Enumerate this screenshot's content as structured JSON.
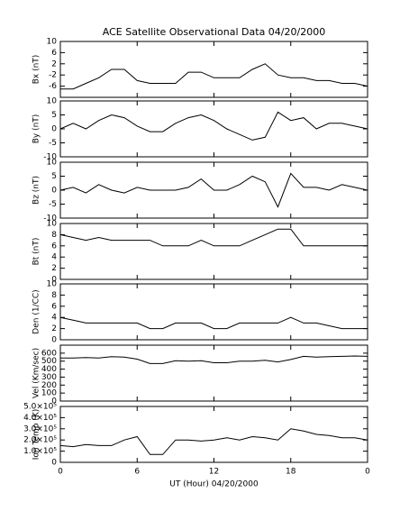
{
  "chart_data": [
    {
      "type": "line",
      "title": "ACE Satellite Observational Data  04/20/2000",
      "ylabel": "Bx (nT)",
      "x": [
        0,
        1,
        2,
        3,
        4,
        5,
        6,
        7,
        8,
        9,
        10,
        11,
        12,
        13,
        14,
        15,
        16,
        17,
        18,
        19,
        20,
        21,
        22,
        23,
        24
      ],
      "values": [
        -7,
        -7,
        -5,
        -3,
        0,
        0,
        -4,
        -5,
        -5,
        -5,
        -1,
        -1,
        -3,
        -3,
        -3,
        0,
        2,
        -2,
        -3,
        -3,
        -4,
        -4,
        -5,
        -5,
        -6
      ],
      "color": "#000000",
      "xlim": [
        0,
        24
      ],
      "xticks": [
        0,
        6,
        12,
        18,
        24
      ],
      "ylim": [
        -10,
        10
      ],
      "yticks": [
        10,
        6,
        2,
        -2,
        -6
      ]
    },
    {
      "type": "line",
      "ylabel": "By (nT)",
      "x": [
        0,
        1,
        2,
        3,
        4,
        5,
        6,
        7,
        8,
        9,
        10,
        11,
        12,
        13,
        14,
        15,
        16,
        17,
        18,
        19,
        20,
        21,
        22,
        23,
        24
      ],
      "values": [
        0,
        2,
        0,
        3,
        5,
        4,
        1,
        -1,
        -1,
        2,
        4,
        5,
        3,
        0,
        -2,
        -4,
        -3,
        6,
        3,
        4,
        0,
        2,
        2,
        1,
        0
      ],
      "color": "#000000",
      "xlim": [
        0,
        24
      ],
      "xticks": [
        0,
        6,
        12,
        18,
        24
      ],
      "ylim": [
        -10,
        10
      ],
      "yticks": [
        10,
        5,
        0,
        -5,
        -10
      ]
    },
    {
      "type": "line",
      "ylabel": "Bz (nT)",
      "x": [
        0,
        1,
        2,
        3,
        4,
        5,
        6,
        7,
        8,
        9,
        10,
        11,
        12,
        13,
        14,
        15,
        16,
        17,
        18,
        19,
        20,
        21,
        22,
        23,
        24
      ],
      "values": [
        0,
        1,
        -1,
        2,
        0,
        -1,
        1,
        0,
        0,
        0,
        1,
        4,
        0,
        0,
        2,
        5,
        3,
        -6,
        6,
        1,
        1,
        0,
        2,
        1,
        0
      ],
      "color": "#000000",
      "xlim": [
        0,
        24
      ],
      "xticks": [
        0,
        6,
        12,
        18,
        24
      ],
      "ylim": [
        -10,
        10
      ],
      "yticks": [
        10,
        5,
        0,
        -5,
        -10
      ]
    },
    {
      "type": "line",
      "ylabel": "Bt (nT)",
      "x": [
        0,
        1,
        2,
        3,
        4,
        5,
        6,
        7,
        8,
        9,
        10,
        11,
        12,
        13,
        14,
        15,
        16,
        17,
        18,
        19,
        20,
        21,
        22,
        23,
        24
      ],
      "values": [
        8,
        7.5,
        7,
        7.5,
        7,
        7,
        7,
        7,
        6,
        6,
        6,
        7,
        6,
        6,
        6,
        7,
        8,
        9,
        9,
        6,
        6,
        6,
        6,
        6,
        6
      ],
      "color": "#000000",
      "xlim": [
        0,
        24
      ],
      "xticks": [
        0,
        6,
        12,
        18,
        24
      ],
      "ylim": [
        0,
        10
      ],
      "yticks": [
        10,
        8,
        6,
        4,
        2,
        0
      ]
    },
    {
      "type": "line",
      "ylabel": "Den (1/CC)",
      "x": [
        0,
        1,
        2,
        3,
        4,
        5,
        6,
        7,
        8,
        9,
        10,
        11,
        12,
        13,
        14,
        15,
        16,
        17,
        18,
        19,
        20,
        21,
        22,
        23,
        24
      ],
      "values": [
        4,
        3.5,
        3,
        3,
        3,
        3,
        3,
        2,
        2,
        3,
        3,
        3,
        2,
        2,
        3,
        3,
        3,
        3,
        4,
        3,
        3,
        2.5,
        2,
        2,
        2
      ],
      "color": "#000000",
      "xlim": [
        0,
        24
      ],
      "xticks": [
        0,
        6,
        12,
        18,
        24
      ],
      "ylim": [
        0,
        10
      ],
      "yticks": [
        10,
        8,
        6,
        4,
        2,
        0
      ]
    },
    {
      "type": "line",
      "ylabel": "Vel (Km/sec)",
      "x": [
        0,
        1,
        2,
        3,
        4,
        5,
        6,
        7,
        8,
        9,
        10,
        11,
        12,
        13,
        14,
        15,
        16,
        17,
        18,
        19,
        20,
        21,
        22,
        23,
        24
      ],
      "values": [
        540,
        540,
        545,
        540,
        555,
        550,
        525,
        470,
        470,
        505,
        500,
        505,
        480,
        480,
        500,
        500,
        510,
        490,
        520,
        560,
        550,
        555,
        560,
        565,
        560
      ],
      "color": "#000000",
      "xlim": [
        0,
        24
      ],
      "xticks": [
        0,
        6,
        12,
        18,
        24
      ],
      "ylim": [
        0,
        700
      ],
      "yticks": [
        600,
        500,
        400,
        300,
        200,
        100,
        0
      ]
    },
    {
      "type": "line",
      "ylabel": "Ion Temp (K)",
      "xlabel": "UT (Hour)  04/20/2000",
      "x": [
        0,
        1,
        2,
        3,
        4,
        5,
        6,
        7,
        8,
        9,
        10,
        11,
        12,
        13,
        14,
        15,
        16,
        17,
        18,
        19,
        20,
        21,
        22,
        23,
        24
      ],
      "values": [
        150000,
        140000,
        160000,
        150000,
        150000,
        200000,
        230000,
        70000,
        70000,
        200000,
        200000,
        190000,
        200000,
        220000,
        200000,
        230000,
        220000,
        200000,
        300000,
        280000,
        250000,
        240000,
        220000,
        220000,
        200000
      ],
      "color": "#000000",
      "xlim": [
        0,
        24
      ],
      "xticks": [
        0,
        6,
        12,
        18,
        {
          "value": 24,
          "label": "0"
        }
      ],
      "ylim": [
        0,
        500000
      ],
      "yticks": [
        {
          "value": 500000,
          "label": "5.0×10⁵"
        },
        {
          "value": 400000,
          "label": "4.0×10⁵"
        },
        {
          "value": 300000,
          "label": "3.0×10⁵"
        },
        {
          "value": 200000,
          "label": "2.0×10⁵"
        },
        {
          "value": 100000,
          "label": "1.0×10⁵"
        },
        0
      ]
    }
  ]
}
